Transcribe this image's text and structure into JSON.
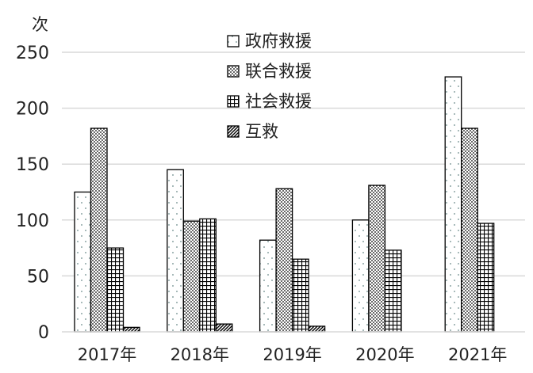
{
  "chart_data": {
    "type": "bar",
    "title": "",
    "ylabel": "次",
    "xlabel": "",
    "ylim": [
      0,
      250
    ],
    "yticks": [
      0,
      50,
      100,
      150,
      200,
      250
    ],
    "grid": true,
    "legend_position": "top-center",
    "categories": [
      "2017年",
      "2018年",
      "2019年",
      "2020年",
      "2021年"
    ],
    "series": [
      {
        "name": "政府救援",
        "pattern": "sparse-dots",
        "values": [
          125,
          145,
          82,
          100,
          228
        ]
      },
      {
        "name": "联合救援",
        "pattern": "dense-dots",
        "values": [
          182,
          99,
          128,
          131,
          182
        ]
      },
      {
        "name": "社会救援",
        "pattern": "grid",
        "values": [
          75,
          101,
          65,
          73,
          97
        ]
      },
      {
        "name": "互救",
        "pattern": "diagonal",
        "values": [
          4,
          7,
          5,
          0,
          0
        ]
      }
    ],
    "colors": {
      "bar_stroke": "#000000",
      "gridline": "#d9d9d9",
      "text": "#222222"
    }
  }
}
